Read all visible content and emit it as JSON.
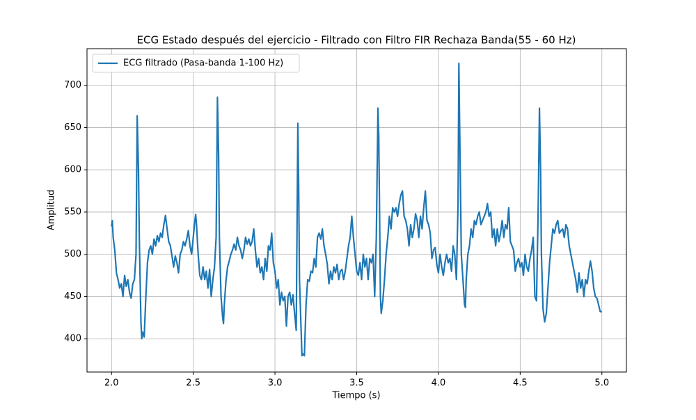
{
  "chart_data": {
    "type": "line",
    "title": "ECG Estado después del ejercicio - Filtrado con Filtro FIR Rechaza Banda(55 - 60 Hz)",
    "xlabel": "Tiempo (s)",
    "ylabel": "Amplitud",
    "xlim": [
      1.85,
      5.15
    ],
    "ylim": [
      360.6,
      743.4
    ],
    "xticks": [
      {
        "value": 2,
        "label": "2.0"
      },
      2.5,
      {
        "value": 3,
        "label": "3.0"
      },
      3.5,
      {
        "value": 4,
        "label": "4.0"
      },
      4.5,
      {
        "value": 5,
        "label": "5.0"
      }
    ],
    "yticks": [
      400,
      450,
      500,
      550,
      600,
      650,
      700
    ],
    "grid": true,
    "legend": "upper left",
    "x": [
      2.0,
      2.005,
      2.01,
      2.02,
      2.03,
      2.04,
      2.05,
      2.06,
      2.07,
      2.08,
      2.09,
      2.1,
      2.11,
      2.12,
      2.13,
      2.14,
      2.15,
      2.157,
      2.165,
      2.17,
      2.18,
      2.185,
      2.19,
      2.2,
      2.21,
      2.22,
      2.23,
      2.24,
      2.25,
      2.26,
      2.27,
      2.28,
      2.29,
      2.3,
      2.31,
      2.32,
      2.33,
      2.34,
      2.35,
      2.36,
      2.37,
      2.38,
      2.39,
      2.4,
      2.41,
      2.42,
      2.43,
      2.44,
      2.45,
      2.46,
      2.47,
      2.48,
      2.49,
      2.5,
      2.51,
      2.515,
      2.52,
      2.53,
      2.54,
      2.55,
      2.56,
      2.57,
      2.58,
      2.59,
      2.6,
      2.61,
      2.62,
      2.63,
      2.64,
      2.648,
      2.655,
      2.66,
      2.67,
      2.68,
      2.685,
      2.69,
      2.7,
      2.71,
      2.72,
      2.73,
      2.74,
      2.75,
      2.76,
      2.77,
      2.78,
      2.79,
      2.8,
      2.81,
      2.82,
      2.83,
      2.84,
      2.85,
      2.86,
      2.87,
      2.88,
      2.89,
      2.9,
      2.91,
      2.92,
      2.93,
      2.94,
      2.95,
      2.96,
      2.97,
      2.98,
      2.99,
      3.0,
      3.01,
      3.02,
      3.03,
      3.04,
      3.05,
      3.06,
      3.07,
      3.08,
      3.09,
      3.1,
      3.11,
      3.12,
      3.13,
      3.14,
      3.145,
      3.15,
      3.16,
      3.165,
      3.17,
      3.18,
      3.19,
      3.2,
      3.21,
      3.22,
      3.23,
      3.24,
      3.25,
      3.26,
      3.27,
      3.28,
      3.29,
      3.3,
      3.31,
      3.32,
      3.33,
      3.34,
      3.35,
      3.36,
      3.37,
      3.38,
      3.39,
      3.4,
      3.41,
      3.42,
      3.43,
      3.44,
      3.45,
      3.46,
      3.47,
      3.48,
      3.49,
      3.5,
      3.51,
      3.52,
      3.53,
      3.54,
      3.55,
      3.56,
      3.57,
      3.58,
      3.59,
      3.6,
      3.61,
      3.62,
      3.63,
      3.635,
      3.64,
      3.645,
      3.65,
      3.66,
      3.67,
      3.68,
      3.69,
      3.7,
      3.71,
      3.72,
      3.73,
      3.74,
      3.75,
      3.76,
      3.77,
      3.78,
      3.79,
      3.8,
      3.81,
      3.82,
      3.83,
      3.84,
      3.85,
      3.86,
      3.87,
      3.88,
      3.89,
      3.9,
      3.91,
      3.92,
      3.93,
      3.94,
      3.95,
      3.96,
      3.97,
      3.98,
      3.99,
      4.0,
      4.01,
      4.02,
      4.03,
      4.04,
      4.05,
      4.06,
      4.07,
      4.08,
      4.09,
      4.1,
      4.11,
      4.12,
      4.125,
      4.13,
      4.14,
      4.15,
      4.16,
      4.165,
      4.17,
      4.18,
      4.19,
      4.2,
      4.21,
      4.22,
      4.23,
      4.24,
      4.25,
      4.26,
      4.27,
      4.28,
      4.29,
      4.3,
      4.31,
      4.32,
      4.33,
      4.34,
      4.35,
      4.36,
      4.37,
      4.38,
      4.39,
      4.4,
      4.41,
      4.42,
      4.43,
      4.44,
      4.45,
      4.46,
      4.47,
      4.48,
      4.49,
      4.5,
      4.51,
      4.52,
      4.53,
      4.54,
      4.55,
      4.56,
      4.57,
      4.58,
      4.59,
      4.6,
      4.61,
      4.618,
      4.625,
      4.63,
      4.64,
      4.65,
      4.66,
      4.67,
      4.68,
      4.69,
      4.7,
      4.71,
      4.72,
      4.73,
      4.74,
      4.75,
      4.76,
      4.77,
      4.78,
      4.79,
      4.8,
      4.81,
      4.82,
      4.83,
      4.84,
      4.85,
      4.86,
      4.87,
      4.88,
      4.89,
      4.9,
      4.91,
      4.92,
      4.93,
      4.94,
      4.95,
      4.96,
      4.97,
      4.98,
      4.99,
      5.0
    ],
    "series": [
      {
        "name": "ECG filtrado (Pasa-banda 1-100 Hz)",
        "color": "#1f77b4",
        "values": [
          533,
          540,
          520,
          505,
          478,
          470,
          460,
          465,
          450,
          475,
          462,
          470,
          455,
          448,
          465,
          470,
          500,
          664,
          600,
          520,
          420,
          400,
          408,
          402,
          450,
          490,
          505,
          510,
          500,
          518,
          510,
          522,
          515,
          525,
          520,
          535,
          546,
          530,
          515,
          510,
          498,
          485,
          498,
          490,
          478,
          500,
          505,
          515,
          510,
          518,
          528,
          510,
          500,
          520,
          540,
          547,
          535,
          500,
          475,
          470,
          485,
          470,
          480,
          460,
          482,
          450,
          470,
          485,
          520,
          686,
          620,
          520,
          450,
          425,
          418,
          440,
          468,
          485,
          492,
          500,
          505,
          512,
          505,
          520,
          510,
          505,
          495,
          505,
          520,
          512,
          518,
          510,
          515,
          530,
          505,
          485,
          495,
          478,
          485,
          470,
          495,
          480,
          510,
          505,
          525,
          490,
          480,
          460,
          470,
          440,
          455,
          445,
          450,
          415,
          450,
          455,
          440,
          452,
          430,
          410,
          655,
          580,
          470,
          410,
          380,
          382,
          380,
          440,
          470,
          468,
          480,
          478,
          495,
          485,
          520,
          525,
          518,
          530,
          510,
          500,
          488,
          465,
          480,
          470,
          485,
          478,
          488,
          470,
          480,
          482,
          470,
          480,
          495,
          510,
          520,
          545,
          520,
          500,
          480,
          475,
          490,
          470,
          500,
          485,
          495,
          470,
          495,
          490,
          500,
          450,
          520,
          673,
          640,
          550,
          450,
          430,
          445,
          470,
          500,
          520,
          545,
          530,
          555,
          550,
          555,
          545,
          560,
          570,
          575,
          545,
          540,
          530,
          510,
          535,
          520,
          530,
          548,
          540,
          520,
          545,
          530,
          555,
          575,
          540,
          535,
          525,
          495,
          505,
          508,
          488,
          478,
          500,
          485,
          475,
          490,
          500,
          490,
          495,
          480,
          510,
          500,
          470,
          560,
          726,
          650,
          500,
          470,
          440,
          437,
          470,
          500,
          510,
          530,
          520,
          540,
          535,
          545,
          550,
          535,
          540,
          545,
          550,
          560,
          545,
          550,
          520,
          530,
          510,
          530,
          515,
          525,
          540,
          520,
          535,
          530,
          555,
          515,
          510,
          505,
          480,
          490,
          495,
          485,
          490,
          475,
          500,
          485,
          480,
          495,
          505,
          520,
          450,
          445,
          550,
          673,
          600,
          500,
          435,
          420,
          430,
          460,
          490,
          510,
          530,
          525,
          535,
          540,
          525,
          528,
          530,
          520,
          535,
          530,
          510,
          500,
          490,
          480,
          470,
          455,
          478,
          460,
          470,
          450,
          470,
          465,
          480,
          492,
          480,
          460,
          450,
          448,
          440,
          432,
          432
        ]
      }
    ]
  }
}
